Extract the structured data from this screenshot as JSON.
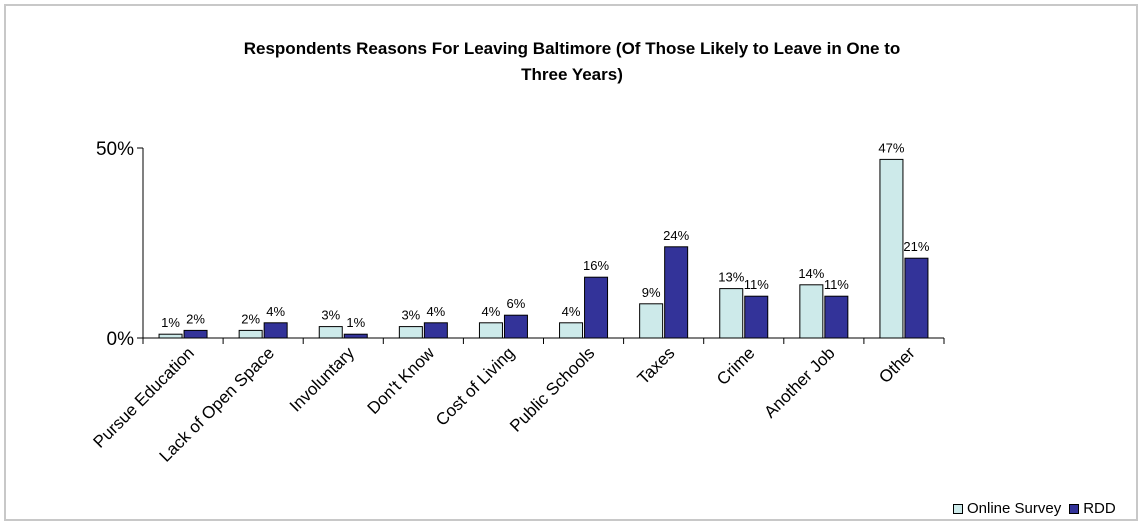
{
  "chart_data": {
    "type": "bar",
    "title_lines": [
      "Respondents Reasons For Leaving Baltimore (Of Those Likely to Leave in One to",
      "Three Years)"
    ],
    "categories": [
      "Pursue Education",
      "Lack of Open Space",
      "Involuntary",
      "Don't Know",
      "Cost of Living",
      "Public Schools",
      "Taxes",
      "Crime",
      "Another Job",
      "Other"
    ],
    "series": [
      {
        "name": "Online Survey",
        "color": "#cdeaea",
        "values": [
          1,
          2,
          3,
          3,
          4,
          4,
          9,
          13,
          14,
          47
        ],
        "labels": [
          "1%",
          "2%",
          "3%",
          "3%",
          "4%",
          "4%",
          "9%",
          "13%",
          "14%",
          "47%"
        ]
      },
      {
        "name": "RDD",
        "color": "#333399",
        "values": [
          2,
          4,
          1,
          4,
          6,
          16,
          24,
          11,
          11,
          21
        ],
        "labels": [
          "2%",
          "4%",
          "1%",
          "4%",
          "6%",
          "16%",
          "24%",
          "11%",
          "11%",
          "21%"
        ]
      }
    ],
    "ylim": [
      0,
      50
    ],
    "yticks": [
      {
        "value": 0,
        "label": "0%"
      },
      {
        "value": 50,
        "label": "50%"
      }
    ],
    "xlabel": "",
    "ylabel": "",
    "grid": false,
    "legend_position": "bottom-right"
  }
}
